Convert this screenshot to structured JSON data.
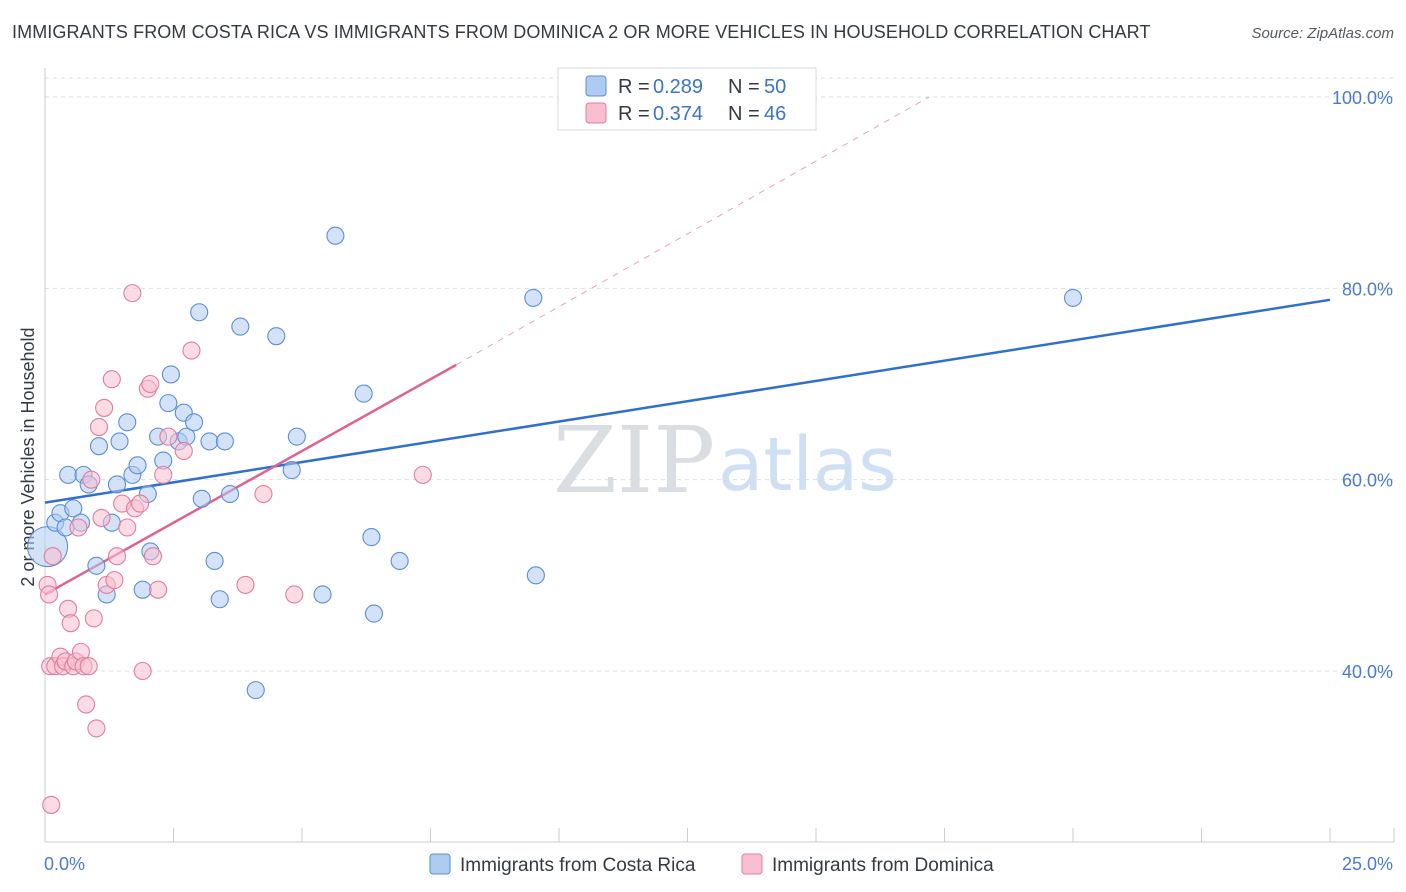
{
  "title": "IMMIGRANTS FROM COSTA RICA VS IMMIGRANTS FROM DOMINICA 2 OR MORE VEHICLES IN HOUSEHOLD CORRELATION CHART",
  "source": "Source: ZipAtlas.com",
  "watermark": {
    "zip": "ZIP",
    "atlas": "atlas"
  },
  "colors": {
    "costa_rica_fill": "#aecbf0",
    "costa_rica_stroke": "#5a8fd6",
    "costa_rica_line": "#2e6fd0",
    "dominica_fill": "#f7bfd0",
    "dominica_stroke": "#e27c9f",
    "dominica_line": "#e0628f",
    "grid": "#d9dde3",
    "tick_label": "#4a7bd0"
  },
  "legend": {
    "r_label": "R =",
    "n_label": "N =",
    "rows": [
      {
        "series": "Immigrants from Costa Rica",
        "r": "0.289",
        "n": "50"
      },
      {
        "series": "Immigrants from Dominica",
        "r": "0.374",
        "n": "46"
      }
    ]
  },
  "chart_data": {
    "type": "scatter",
    "title": "IMMIGRANTS FROM COSTA RICA VS IMMIGRANTS FROM DOMINICA 2 OR MORE VEHICLES IN HOUSEHOLD CORRELATION CHART",
    "xlabel": "",
    "ylabel": "2 or more Vehicles in Household",
    "xlim": [
      0,
      25
    ],
    "ylim": [
      22,
      103
    ],
    "x_tick_labels": [
      {
        "value": 0,
        "label": "0.0%"
      },
      {
        "value": 25,
        "label": "25.0%"
      }
    ],
    "x_minor_ticks": [
      2.5,
      5,
      7.5,
      10,
      12.5,
      15,
      17.5,
      20,
      22.5,
      25
    ],
    "y_ticks": [
      {
        "value": 100,
        "label": "100.0%"
      },
      {
        "value": 80,
        "label": "80.0%"
      },
      {
        "value": 60,
        "label": "60.0%"
      },
      {
        "value": 40,
        "label": "40.0%"
      }
    ],
    "grid": true,
    "legend_position": "top-center",
    "series": [
      {
        "name": "Immigrants from Costa Rica",
        "r": 0.289,
        "n": 50,
        "points": [
          {
            "x": 0.05,
            "y": 53.0,
            "big": true
          },
          {
            "x": 0.2,
            "y": 55.5
          },
          {
            "x": 0.3,
            "y": 56.5
          },
          {
            "x": 0.4,
            "y": 55.0
          },
          {
            "x": 0.45,
            "y": 60.5
          },
          {
            "x": 0.55,
            "y": 57.0
          },
          {
            "x": 0.7,
            "y": 55.5
          },
          {
            "x": 0.75,
            "y": 60.5
          },
          {
            "x": 0.85,
            "y": 59.5
          },
          {
            "x": 1.0,
            "y": 51.0
          },
          {
            "x": 1.05,
            "y": 63.5
          },
          {
            "x": 1.2,
            "y": 48.0
          },
          {
            "x": 1.3,
            "y": 55.5
          },
          {
            "x": 1.4,
            "y": 59.5
          },
          {
            "x": 1.45,
            "y": 64.0
          },
          {
            "x": 1.6,
            "y": 66.0
          },
          {
            "x": 1.7,
            "y": 60.5
          },
          {
            "x": 1.8,
            "y": 61.5
          },
          {
            "x": 1.9,
            "y": 48.5
          },
          {
            "x": 2.0,
            "y": 58.5
          },
          {
            "x": 2.05,
            "y": 52.5
          },
          {
            "x": 2.2,
            "y": 64.5
          },
          {
            "x": 2.3,
            "y": 62.0
          },
          {
            "x": 2.4,
            "y": 68.0
          },
          {
            "x": 2.45,
            "y": 71.0
          },
          {
            "x": 2.6,
            "y": 64.0
          },
          {
            "x": 2.7,
            "y": 67.0
          },
          {
            "x": 2.75,
            "y": 64.5
          },
          {
            "x": 2.9,
            "y": 66.0
          },
          {
            "x": 3.0,
            "y": 77.5
          },
          {
            "x": 3.05,
            "y": 58.0
          },
          {
            "x": 3.2,
            "y": 64.0
          },
          {
            "x": 3.3,
            "y": 51.5
          },
          {
            "x": 3.4,
            "y": 47.5
          },
          {
            "x": 3.5,
            "y": 64.0
          },
          {
            "x": 3.6,
            "y": 58.5
          },
          {
            "x": 3.8,
            "y": 76.0
          },
          {
            "x": 4.1,
            "y": 38.0
          },
          {
            "x": 4.5,
            "y": 75.0
          },
          {
            "x": 4.8,
            "y": 61.0
          },
          {
            "x": 4.9,
            "y": 64.5
          },
          {
            "x": 5.4,
            "y": 48.0
          },
          {
            "x": 5.65,
            "y": 85.5
          },
          {
            "x": 6.2,
            "y": 69.0
          },
          {
            "x": 6.35,
            "y": 54.0
          },
          {
            "x": 6.4,
            "y": 46.0
          },
          {
            "x": 6.9,
            "y": 51.5
          },
          {
            "x": 9.5,
            "y": 79.0
          },
          {
            "x": 9.55,
            "y": 50.0
          },
          {
            "x": 20.0,
            "y": 79.0
          }
        ],
        "trend": {
          "x0": 0,
          "y0": 57.6,
          "x1": 25,
          "y1": 78.8
        }
      },
      {
        "name": "Immigrants from Dominica",
        "r": 0.374,
        "n": 46,
        "points": [
          {
            "x": 0.05,
            "y": 49.0
          },
          {
            "x": 0.08,
            "y": 48.0
          },
          {
            "x": 0.1,
            "y": 40.5
          },
          {
            "x": 0.12,
            "y": 26.0
          },
          {
            "x": 0.15,
            "y": 52.0
          },
          {
            "x": 0.2,
            "y": 40.5
          },
          {
            "x": 0.3,
            "y": 41.5
          },
          {
            "x": 0.35,
            "y": 40.5
          },
          {
            "x": 0.4,
            "y": 41.0
          },
          {
            "x": 0.45,
            "y": 46.5
          },
          {
            "x": 0.5,
            "y": 45.0
          },
          {
            "x": 0.55,
            "y": 40.5
          },
          {
            "x": 0.6,
            "y": 41.0
          },
          {
            "x": 0.65,
            "y": 55.0
          },
          {
            "x": 0.7,
            "y": 42.0
          },
          {
            "x": 0.75,
            "y": 40.5
          },
          {
            "x": 0.8,
            "y": 36.5
          },
          {
            "x": 0.85,
            "y": 40.5
          },
          {
            "x": 0.9,
            "y": 60.0
          },
          {
            "x": 0.95,
            "y": 45.5
          },
          {
            "x": 1.0,
            "y": 34.0
          },
          {
            "x": 1.05,
            "y": 65.5
          },
          {
            "x": 1.1,
            "y": 56.0
          },
          {
            "x": 1.15,
            "y": 67.5
          },
          {
            "x": 1.2,
            "y": 49.0
          },
          {
            "x": 1.3,
            "y": 70.5
          },
          {
            "x": 1.35,
            "y": 49.5
          },
          {
            "x": 1.4,
            "y": 52.0
          },
          {
            "x": 1.5,
            "y": 57.5
          },
          {
            "x": 1.6,
            "y": 55.0
          },
          {
            "x": 1.7,
            "y": 79.5
          },
          {
            "x": 1.75,
            "y": 57.0
          },
          {
            "x": 1.85,
            "y": 57.5
          },
          {
            "x": 1.9,
            "y": 40.0
          },
          {
            "x": 2.0,
            "y": 69.5
          },
          {
            "x": 2.05,
            "y": 70.0
          },
          {
            "x": 2.1,
            "y": 52.0
          },
          {
            "x": 2.2,
            "y": 48.5
          },
          {
            "x": 2.3,
            "y": 60.5
          },
          {
            "x": 2.4,
            "y": 64.5
          },
          {
            "x": 2.7,
            "y": 63.0
          },
          {
            "x": 2.85,
            "y": 73.5
          },
          {
            "x": 3.9,
            "y": 49.0
          },
          {
            "x": 4.25,
            "y": 58.5
          },
          {
            "x": 4.85,
            "y": 48.0
          },
          {
            "x": 7.35,
            "y": 60.5
          }
        ],
        "trend": {
          "x0": 0,
          "y0": 48.0,
          "x1": 8.0,
          "y1": 72.0
        },
        "trend_extension": {
          "x0": 8.0,
          "y0": 72.0,
          "x1": 17.2,
          "y1": 100.0
        }
      }
    ]
  },
  "bottom_legend": [
    {
      "label": "Immigrants from Costa Rica"
    },
    {
      "label": "Immigrants from Dominica"
    }
  ]
}
